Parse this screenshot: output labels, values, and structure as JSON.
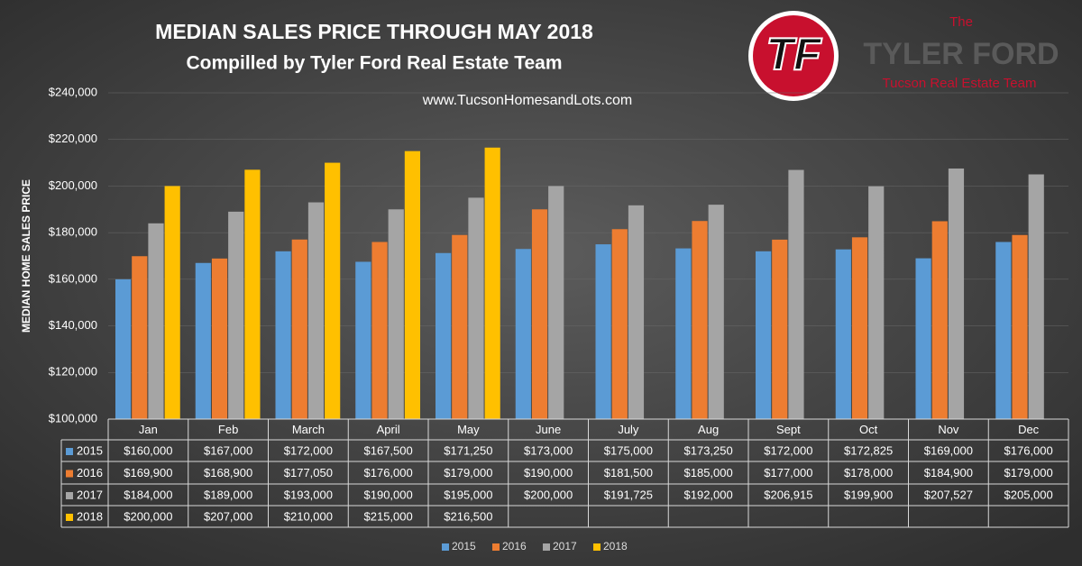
{
  "chart_data": {
    "type": "bar",
    "title": "MEDIAN SALES PRICE THROUGH MAY 2018",
    "subtitle": "Compilled by Tyler Ford Real Estate Team",
    "annotation": "www.TucsonHomesandLots.com",
    "y_label": "MEDIAN HOME SALES PRICE",
    "categories": [
      "Jan",
      "Feb",
      "March",
      "April",
      "May",
      "June",
      "July",
      "Aug",
      "Sept",
      "Oct",
      "Nov",
      "Dec"
    ],
    "series": [
      {
        "name": "2015",
        "color": "#5b9bd5",
        "values": [
          160000,
          167000,
          172000,
          167500,
          171250,
          173000,
          175000,
          173250,
          172000,
          172825,
          169000,
          176000
        ],
        "value_labels": [
          "$160,000",
          "$167,000",
          "$172,000",
          "$167,500",
          "$171,250",
          "$173,000",
          "$175,000",
          "$173,250",
          "$172,000",
          "$172,825",
          "$169,000",
          "$176,000"
        ]
      },
      {
        "name": "2016",
        "color": "#ed7d31",
        "values": [
          169900,
          168900,
          177050,
          176000,
          179000,
          190000,
          181500,
          185000,
          177000,
          178000,
          184900,
          179000
        ],
        "value_labels": [
          "$169,900",
          "$168,900",
          "$177,050",
          "$176,000",
          "$179,000",
          "$190,000",
          "$181,500",
          "$185,000",
          "$177,000",
          "$178,000",
          "$184,900",
          "$179,000"
        ]
      },
      {
        "name": "2017",
        "color": "#a5a5a5",
        "values": [
          184000,
          189000,
          193000,
          190000,
          195000,
          200000,
          191725,
          192000,
          206915,
          199900,
          207527,
          205000
        ],
        "value_labels": [
          "$184,000",
          "$189,000",
          "$193,000",
          "$190,000",
          "$195,000",
          "$200,000",
          "$191,725",
          "$192,000",
          "$206,915",
          "$199,900",
          "$207,527",
          "$205,000"
        ]
      },
      {
        "name": "2018",
        "color": "#ffc000",
        "values": [
          200000,
          207000,
          210000,
          215000,
          216500,
          null,
          null,
          null,
          null,
          null,
          null,
          null
        ],
        "value_labels": [
          "$200,000",
          "$207,000",
          "$210,000",
          "$215,000",
          "$216,500",
          null,
          null,
          null,
          null,
          null,
          null,
          null
        ]
      }
    ],
    "ylim": [
      100000,
      240000
    ],
    "yticks": [
      {
        "value": 100000,
        "label": "$100,000"
      },
      {
        "value": 120000,
        "label": "$120,000"
      },
      {
        "value": 140000,
        "label": "$140,000"
      },
      {
        "value": 160000,
        "label": "$160,000"
      },
      {
        "value": 180000,
        "label": "$180,000"
      },
      {
        "value": 200000,
        "label": "$200,000"
      },
      {
        "value": 220000,
        "label": "$220,000"
      },
      {
        "value": 240000,
        "label": "$240,000"
      }
    ],
    "grid": true,
    "legend": "bottom"
  },
  "logo": {
    "mark": "TF",
    "pre": "The",
    "name": "TYLER FORD",
    "tagline": "Tucson Real Estate Team"
  }
}
